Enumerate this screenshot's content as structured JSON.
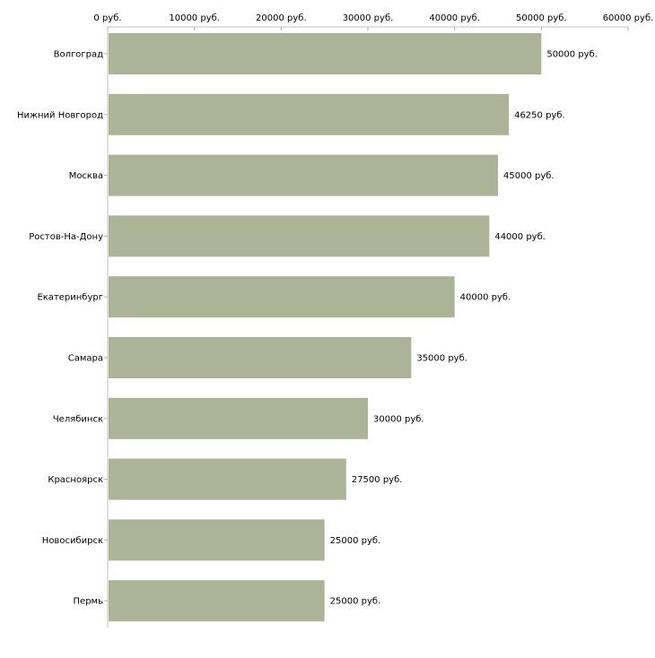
{
  "chart_data": {
    "type": "bar",
    "orientation": "horizontal",
    "title": "",
    "xlabel": "",
    "ylabel": "",
    "xlim": [
      0,
      60000
    ],
    "x_ticks": [
      "0 руб.",
      "10000 руб.",
      "20000 руб.",
      "30000 руб.",
      "40000 руб.",
      "50000 руб.",
      "60000 руб."
    ],
    "x_tick_values": [
      0,
      10000,
      20000,
      30000,
      40000,
      50000,
      60000
    ],
    "axis_position": "top",
    "grid": false,
    "categories": [
      "Волгоград",
      "Нижний Новгород",
      "Москва",
      "Ростов-На-Дону",
      "Екатеринбург",
      "Самара",
      "Челябинск",
      "Красноярск",
      "Новосибирск",
      "Пермь"
    ],
    "values": [
      50000,
      46250,
      45000,
      44000,
      40000,
      35000,
      30000,
      27500,
      25000,
      25000
    ],
    "value_labels": [
      "50000 руб.",
      "46250 руб.",
      "45000 руб.",
      "44000 руб.",
      "40000 руб.",
      "35000 руб.",
      "30000 руб.",
      "27500 руб.",
      "25000 руб.",
      "25000 руб."
    ],
    "colors": {
      "bar": "#adb397",
      "axis": "#c0c0c0",
      "tick": "#b4b98f"
    }
  }
}
